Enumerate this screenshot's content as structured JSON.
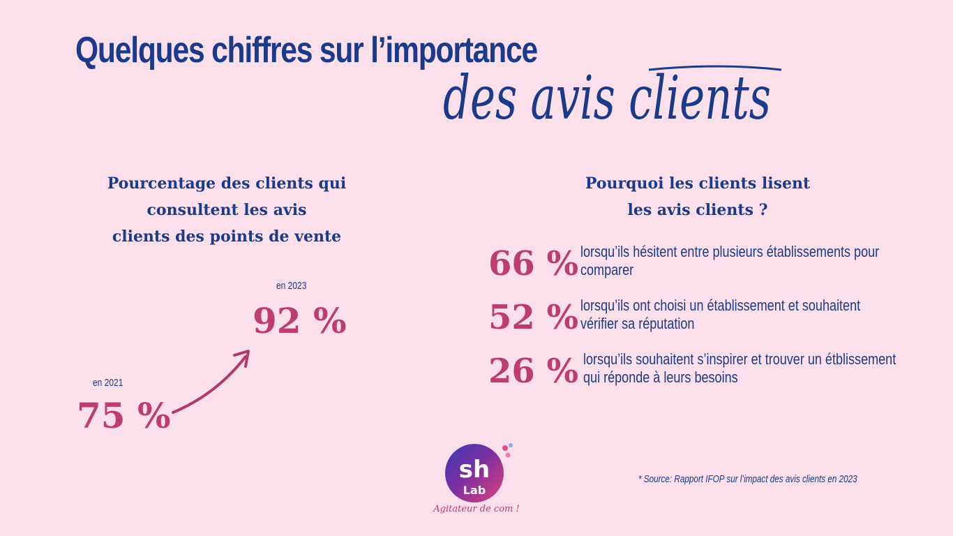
{
  "title": {
    "line1": "Quelques chiffres sur l’importance",
    "line2": "des avis clients"
  },
  "left_section": {
    "heading_lines": [
      "Pourcentage des clients qui",
      "consultent les avis",
      "clients des points de vente"
    ],
    "label_2021": "en 2021",
    "value_2021": "75 %",
    "label_2023": "en 2023",
    "value_2023": "92 %"
  },
  "right_section": {
    "heading_lines": [
      "Pourquoi les clients lisent",
      "les avis clients ?"
    ],
    "stats": [
      {
        "value": "66 %",
        "text": "lorsqu’ils hésitent entre plusieurs établissements pour comparer"
      },
      {
        "value": "52 %",
        "text": "lorsqu’ils ont choisi un établissement et souhaitent vérifier sa réputation"
      },
      {
        "value": "26 %",
        "text": "lorsqu’ils souhaitent s’inspirer et trouver un étblissement qui réponde à leurs besoins"
      }
    ]
  },
  "source": "* Source: Rapport IFOP sur l’impact des avis clients en 2023",
  "logo": {
    "text_main": "sh",
    "text_sub": "Lab",
    "tagline": "Agitateur de com !"
  },
  "colors": {
    "background": "#fbe0ec",
    "navy": "#1b3a8a",
    "pink": "#bd3d6e"
  },
  "icons": [
    "trend-arrow-icon"
  ]
}
